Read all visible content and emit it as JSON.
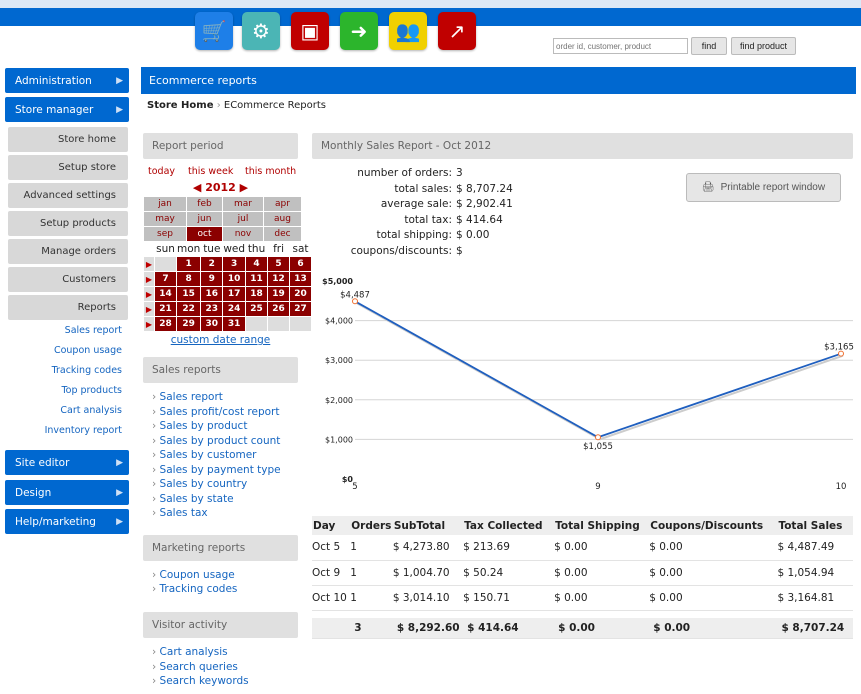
{
  "toolbar": {
    "icons": [
      {
        "name": "cart-icon",
        "color": "#1e7fe8",
        "glyph": "🛒"
      },
      {
        "name": "gears-icon",
        "color": "#4bb5b5",
        "glyph": "⚙"
      },
      {
        "name": "boxes-icon",
        "color": "#c00000",
        "glyph": "▣"
      },
      {
        "name": "arrow-icon",
        "color": "#2cb52c",
        "glyph": "➜"
      },
      {
        "name": "users-icon",
        "color": "#f0d000",
        "glyph": "👥"
      },
      {
        "name": "chart-icon",
        "color": "#c00000",
        "glyph": "↗"
      }
    ],
    "search_placeholder": "order id, customer, product",
    "find": "find",
    "find_product": "find product"
  },
  "sidebar": {
    "administration": "Administration",
    "store_manager": "Store manager",
    "sub": [
      "Store home",
      "Setup store",
      "Advanced settings",
      "Setup products",
      "Manage orders",
      "Customers",
      "Reports"
    ],
    "links": [
      "Sales report",
      "Coupon usage",
      "Tracking codes",
      "Top products",
      "Cart analysis",
      "Inventory report"
    ],
    "site_editor": "Site editor",
    "design": "Design",
    "help": "Help/marketing"
  },
  "header": {
    "title": "Ecommerce reports"
  },
  "breadcrumb": {
    "home": "Store Home",
    "sep": "›",
    "current": "ECommerce Reports"
  },
  "report_period": {
    "title": "Report period",
    "today": "today",
    "this_week": "this week",
    "this_month": "this month",
    "year": "2012",
    "months": [
      "jan",
      "feb",
      "mar",
      "apr",
      "may",
      "jun",
      "jul",
      "aug",
      "sep",
      "oct",
      "nov",
      "dec"
    ],
    "selected_month": "oct",
    "weekdays": [
      "sun",
      "mon",
      "tue",
      "wed",
      "thu",
      "fri",
      "sat"
    ],
    "weeks": [
      [
        "",
        "1",
        "2",
        "3",
        "4",
        "5",
        "6"
      ],
      [
        "7",
        "8",
        "9",
        "10",
        "11",
        "12",
        "13"
      ],
      [
        "14",
        "15",
        "16",
        "17",
        "18",
        "19",
        "20"
      ],
      [
        "21",
        "22",
        "23",
        "24",
        "25",
        "26",
        "27"
      ],
      [
        "28",
        "29",
        "30",
        "31",
        "",
        "",
        ""
      ]
    ],
    "custom": "custom date range"
  },
  "sales_reports": {
    "title": "Sales reports",
    "items": [
      "Sales report",
      "Sales profit/cost report",
      "Sales by product",
      "Sales by product count",
      "Sales by customer",
      "Sales by payment type",
      "Sales by country",
      "Sales by state",
      "Sales tax"
    ]
  },
  "marketing_reports": {
    "title": "Marketing reports",
    "items": [
      "Coupon usage",
      "Tracking codes"
    ]
  },
  "visitor_activity": {
    "title": "Visitor activity",
    "items": [
      "Cart analysis",
      "Search queries",
      "Search keywords"
    ]
  },
  "report": {
    "title": "Monthly Sales Report - Oct 2012",
    "print": "Printable report window",
    "stats": [
      [
        "number of orders:",
        "3"
      ],
      [
        "total sales:",
        "$ 8,707.24"
      ],
      [
        "average sale:",
        "$ 2,902.41"
      ],
      [
        "total tax:",
        "$ 414.64"
      ],
      [
        "total shipping:",
        "$ 0.00"
      ],
      [
        "coupons/discounts:",
        "$"
      ]
    ]
  },
  "chart_data": {
    "type": "line",
    "x": [
      "5",
      "9",
      "10"
    ],
    "values": [
      4487.49,
      1054.94,
      3164.81
    ],
    "data_labels": [
      "$4,487",
      "$1,055",
      "$3,165"
    ],
    "yticks": [
      "$0",
      "$1,000",
      "$2,000",
      "$3,000",
      "$4,000",
      "$5,000"
    ],
    "ylim": [
      0,
      5000
    ],
    "grid": true,
    "line_color": "#1f5fbf",
    "marker_color": "#f07030"
  },
  "table": {
    "headers": [
      "Day",
      "Orders",
      "SubTotal",
      "Tax Collected",
      "Total Shipping",
      "Coupons/Discounts",
      "Total Sales"
    ],
    "rows": [
      [
        "Oct 5",
        "1",
        "$ 4,273.80",
        "$ 213.69",
        "$ 0.00",
        "$ 0.00",
        "$ 4,487.49"
      ],
      [
        "Oct 9",
        "1",
        "$ 1,004.70",
        "$ 50.24",
        "$ 0.00",
        "$ 0.00",
        "$ 1,054.94"
      ],
      [
        "Oct 10",
        "1",
        "$ 3,014.10",
        "$ 150.71",
        "$ 0.00",
        "$ 0.00",
        "$ 3,164.81"
      ]
    ],
    "totals": [
      "",
      "3",
      "$ 8,292.60",
      "$ 414.64",
      "$ 0.00",
      "$ 0.00",
      "$ 8,707.24"
    ]
  }
}
